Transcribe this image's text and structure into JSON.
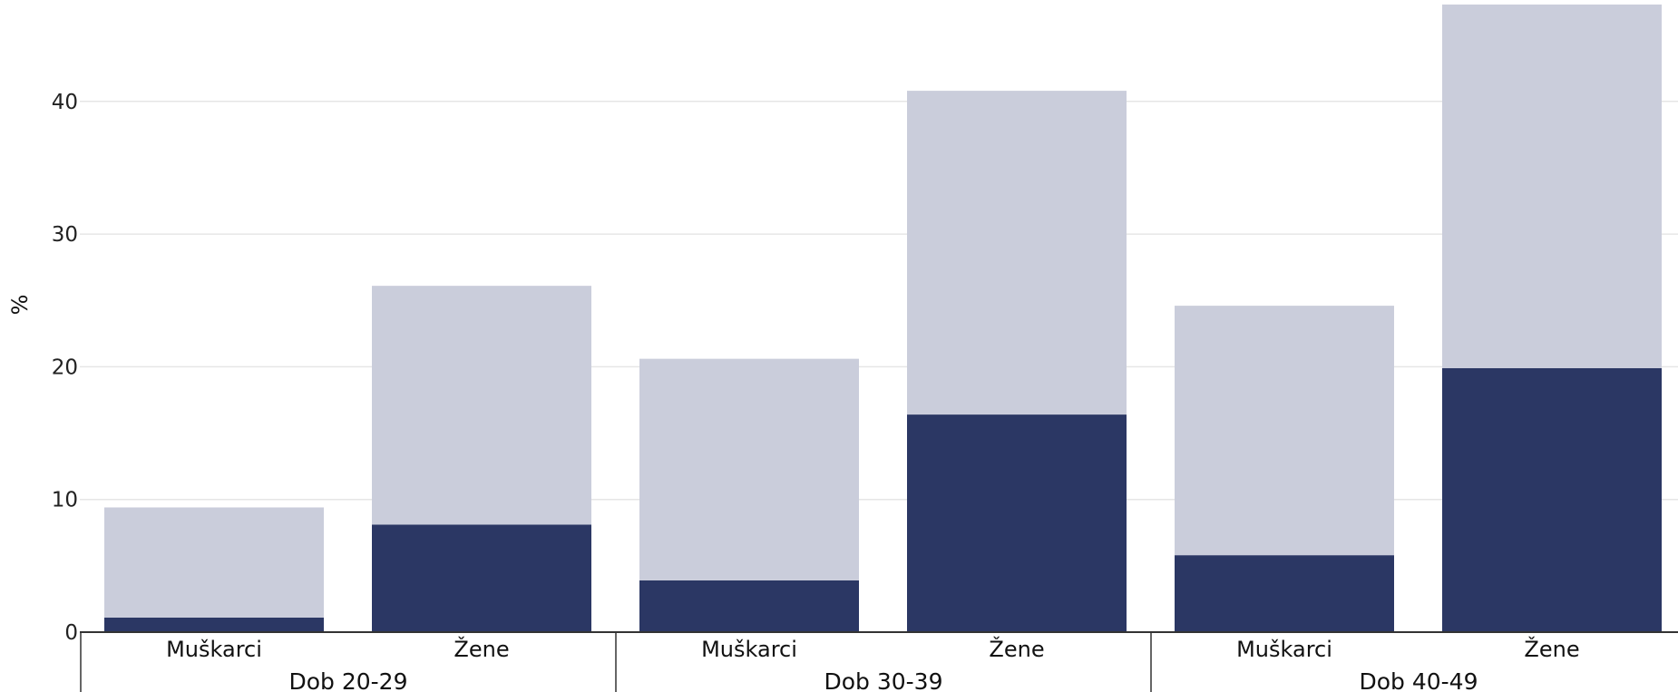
{
  "chart_data": {
    "type": "bar",
    "stacked": true,
    "ylabel": "%",
    "ylim": [
      0,
      47
    ],
    "yticks": [
      0,
      10,
      20,
      30,
      40
    ],
    "grid": true,
    "groups": [
      "Dob 20-29",
      "Dob 30-39",
      "Dob 40-49"
    ],
    "categories": [
      "Muškarci",
      "Žene",
      "Muškarci",
      "Žene",
      "Muškarci",
      "Žene"
    ],
    "series": [
      {
        "values": [
          1.1,
          8.1,
          3.9,
          16.4,
          5.8,
          19.9
        ],
        "color": "#2b3764"
      },
      {
        "values": [
          8.3,
          18.0,
          16.7,
          24.4,
          18.8,
          27.4
        ],
        "color": "#cacddb"
      }
    ],
    "totals": [
      9.4,
      26.1,
      20.6,
      40.8,
      24.6,
      47.3
    ]
  }
}
